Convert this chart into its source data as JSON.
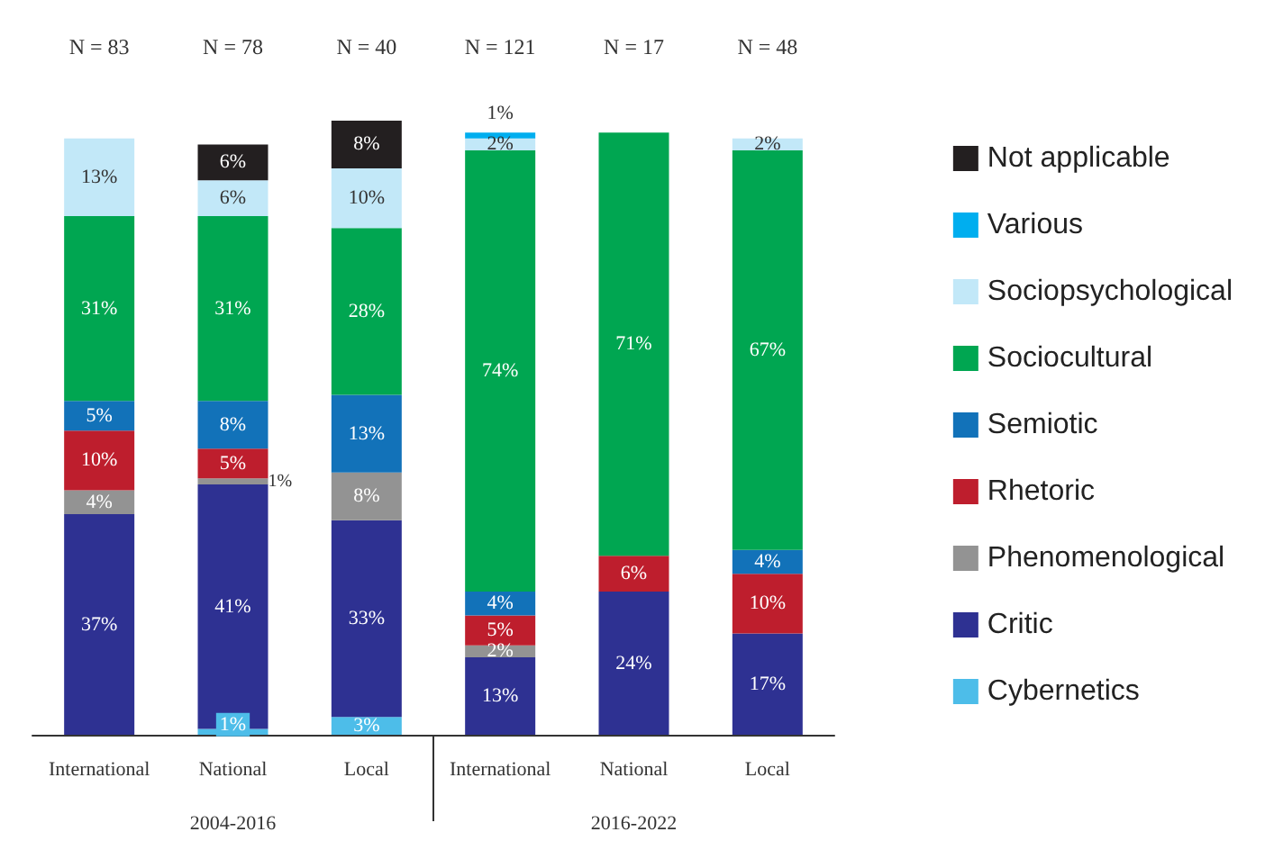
{
  "chart_data": {
    "type": "bar",
    "stacked": true,
    "legend": "right",
    "categories": [
      "International",
      "National",
      "Local",
      "International",
      "National",
      "Local"
    ],
    "series": [
      {
        "name": "Cybernetics",
        "color": "#4dbde9",
        "values": [
          null,
          1,
          3,
          null,
          null,
          null
        ],
        "value_labels": [
          null,
          "1%",
          "3%",
          null,
          null,
          null
        ]
      },
      {
        "name": "Critic",
        "color": "#2e3192",
        "values": [
          37,
          41,
          33,
          13,
          24,
          17
        ],
        "value_labels": [
          "37%",
          "41%",
          "33%",
          "13%",
          "24%",
          "17%"
        ]
      },
      {
        "name": "Phenomenological",
        "color": "#939393",
        "values": [
          4,
          1,
          8,
          2,
          null,
          null
        ],
        "value_labels": [
          "4%",
          "1%",
          "8%",
          "2%",
          null,
          null
        ]
      },
      {
        "name": "Rhetoric",
        "color": "#be1e2d",
        "values": [
          10,
          5,
          null,
          5,
          6,
          10
        ],
        "value_labels": [
          "10%",
          "5%",
          null,
          "5%",
          "6%",
          "10%"
        ]
      },
      {
        "name": "Semiotic",
        "color": "#1272b9",
        "values": [
          5,
          8,
          13,
          4,
          null,
          4
        ],
        "value_labels": [
          "5%",
          "8%",
          "13%",
          "4%",
          null,
          "4%"
        ]
      },
      {
        "name": "Sociocultural",
        "color": "#00a651",
        "values": [
          31,
          31,
          28,
          74,
          71,
          67
        ],
        "value_labels": [
          "31%",
          "31%",
          "28%",
          "74%",
          "71%",
          "67%"
        ]
      },
      {
        "name": "Sociopsychological",
        "color": "#c2e8f8",
        "values": [
          13,
          6,
          10,
          2,
          null,
          2
        ],
        "value_labels": [
          "13%",
          "6%",
          "10%",
          "2%",
          null,
          "2%"
        ]
      },
      {
        "name": "Various",
        "color": "#00aeef",
        "values": [
          null,
          null,
          null,
          1,
          null,
          null
        ],
        "value_labels": [
          null,
          null,
          null,
          "1%",
          null,
          null
        ]
      },
      {
        "name": "Not applicable",
        "color": "#231f20",
        "values": [
          null,
          6,
          8,
          null,
          null,
          null
        ],
        "value_labels": [
          null,
          "6%",
          "8%",
          null,
          null,
          null
        ]
      }
    ],
    "annotations": [
      "N = 83",
      "N = 78",
      "N = 40",
      "N = 121",
      "N = 17",
      "N = 48",
      "2004-2016",
      "2016-2022"
    ]
  }
}
